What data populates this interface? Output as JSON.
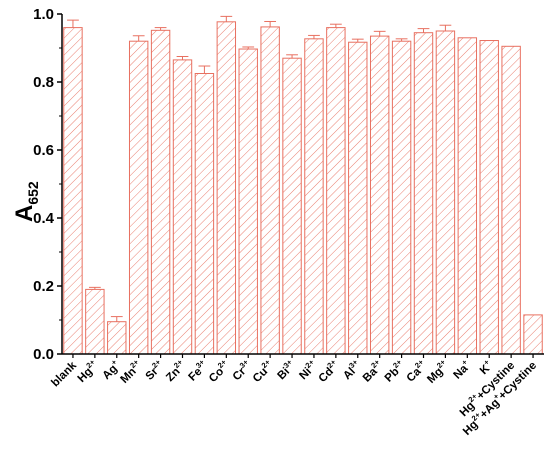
{
  "chart_data": {
    "type": "bar",
    "ylabel": {
      "base": "A",
      "sub": "652"
    },
    "ylim": [
      0,
      1.0
    ],
    "yticks": [
      "0.0",
      "0.2",
      "0.4",
      "0.6",
      "0.8",
      "1.0"
    ],
    "bar_color": "#e87060",
    "bar_fill": "hatched",
    "categories": [
      {
        "base": "blank",
        "sup": ""
      },
      {
        "base": "Hg",
        "sup": "2+"
      },
      {
        "base": "Ag",
        "sup": "+"
      },
      {
        "base": "Mn",
        "sup": "2+"
      },
      {
        "base": "Sr",
        "sup": "2+"
      },
      {
        "base": "Zn",
        "sup": "2+"
      },
      {
        "base": "Fe",
        "sup": "3+"
      },
      {
        "base": "Co",
        "sup": "2+"
      },
      {
        "base": "Cr",
        "sup": "3+"
      },
      {
        "base": "Cu",
        "sup": "2+"
      },
      {
        "base": "Bi",
        "sup": "3+"
      },
      {
        "base": "Ni",
        "sup": "2+"
      },
      {
        "base": "Cd",
        "sup": "2+"
      },
      {
        "base": "Al",
        "sup": "3+"
      },
      {
        "base": "Ba",
        "sup": "2+"
      },
      {
        "base": "Pb",
        "sup": "2+"
      },
      {
        "base": "Ca",
        "sup": "2+"
      },
      {
        "base": "Mg",
        "sup": "2+"
      },
      {
        "base": "Na",
        "sup": "+"
      },
      {
        "base": "K",
        "sup": "+"
      },
      {
        "base": "Hg",
        "sup": "2+",
        "tail": "+Cystine"
      },
      {
        "base": "Hg",
        "sup": "2+",
        "tail": "+Ag",
        "sup2": "+",
        "tail2": "+Cystine"
      }
    ],
    "values": [
      0.96,
      0.19,
      0.095,
      0.92,
      0.952,
      0.865,
      0.825,
      0.977,
      0.897,
      0.962,
      0.87,
      0.927,
      0.96,
      0.917,
      0.935,
      0.92,
      0.945,
      0.95,
      0.93,
      0.922,
      0.905,
      0.115
    ],
    "errors": [
      0.022,
      0.006,
      0.015,
      0.016,
      0.008,
      0.01,
      0.022,
      0.016,
      0.006,
      0.016,
      0.01,
      0.01,
      0.01,
      0.009,
      0.014,
      0.007,
      0.012,
      0.017,
      0,
      0,
      0,
      0
    ]
  }
}
